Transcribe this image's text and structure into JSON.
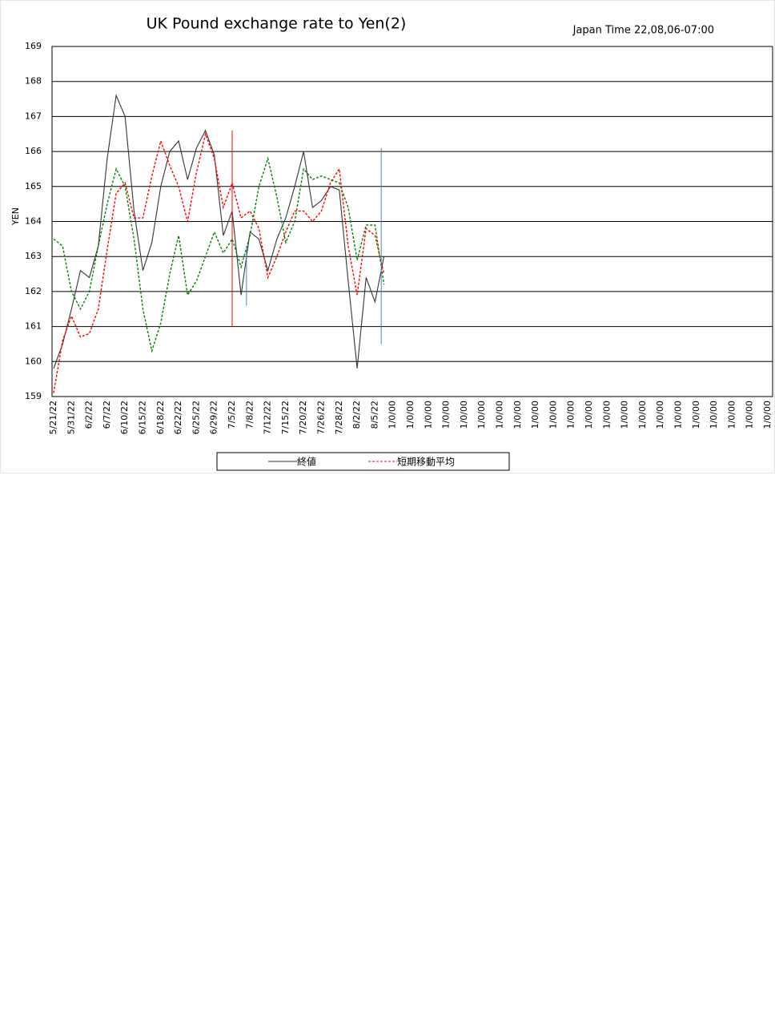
{
  "chart_data": {
    "type": "line",
    "title": "UK Pound exchange rate to Yen(2)",
    "annotation": "Japan Time 22,08,06-07:00",
    "y_label": "YEN",
    "categories": [
      "5/21/22",
      null,
      "5/31/22",
      null,
      "6/2/22",
      null,
      "6/7/22",
      null,
      "6/10/22",
      null,
      "6/15/22",
      null,
      "6/18/22",
      null,
      "6/22/22",
      null,
      "6/25/22",
      null,
      "6/29/22",
      null,
      "7/5/22",
      null,
      "7/8/22",
      null,
      "7/12/22",
      null,
      "7/15/22",
      null,
      "7/20/22",
      null,
      "7/26/22",
      null,
      "7/28/22",
      null,
      "8/2/22",
      null,
      "8/5/22",
      null,
      "1/0/00",
      null,
      "1/0/00",
      null,
      "1/0/00",
      null,
      "1/0/00",
      null,
      "1/0/00",
      null,
      "1/0/00",
      null,
      "1/0/00",
      null,
      "1/0/00",
      null,
      "1/0/00",
      null,
      "1/0/00",
      null,
      "1/0/00",
      null,
      "1/0/00",
      null,
      "1/0/00",
      null,
      "1/0/00",
      null,
      "1/0/00",
      null,
      "1/0/00",
      null,
      "1/0/00",
      null,
      "1/0/00",
      null,
      "1/0/00",
      null,
      "1/0/00",
      null,
      "1/0/00",
      null,
      "1/0/00"
    ],
    "series": [
      {
        "name": "終値",
        "color": "#333333",
        "dash": false,
        "values": [
          159.8,
          160.5,
          161.5,
          162.6,
          162.4,
          163.3,
          165.8,
          167.6,
          167,
          164.3,
          162.6,
          163.4,
          165,
          166,
          166.3,
          165.2,
          166.1,
          166.6,
          165.9,
          163.6,
          164.3,
          161.9,
          163.7,
          163.5,
          162.6,
          163.5,
          164.1,
          165,
          166,
          164.4,
          164.6,
          165,
          164.9,
          162.3,
          159.8,
          162.4,
          161.7,
          163.0,
          null,
          null,
          null,
          null,
          null,
          null,
          null,
          null,
          null,
          null,
          null,
          null,
          null,
          null,
          null,
          null,
          null,
          null,
          null,
          null,
          null,
          null,
          null,
          null,
          null,
          null,
          null,
          null,
          null,
          null,
          null,
          null,
          null,
          null,
          null,
          null,
          null,
          null,
          null,
          null,
          null,
          null,
          null
        ]
      },
      {
        "name": "短期移動平均",
        "color": "#ff0000",
        "dash": true,
        "values": [
          159.1,
          160.6,
          161.3,
          160.7,
          160.8,
          161.5,
          163.2,
          164.8,
          165.1,
          164.1,
          164.1,
          165.3,
          166.3,
          165.6,
          165,
          164,
          165.4,
          166.5,
          165.8,
          164.4,
          165.1,
          164.1,
          164.3,
          163.8,
          162.4,
          163,
          163.7,
          164.3,
          164.3,
          164,
          164.3,
          165.1,
          165.5,
          163.3,
          161.9,
          163.8,
          163.6,
          162.5,
          null,
          null,
          null,
          null,
          null,
          null,
          null,
          null,
          null,
          null,
          null,
          null,
          null,
          null,
          null,
          null,
          null,
          null,
          null,
          null,
          null,
          null,
          null,
          null,
          null,
          null,
          null,
          null,
          null,
          null,
          null,
          null,
          null,
          null,
          null,
          null,
          null,
          null,
          null,
          null,
          null,
          null,
          null
        ]
      },
      {
        "color": "#008000",
        "dash": true,
        "values": [
          163.5,
          163.3,
          162,
          161.5,
          162,
          163.3,
          164.5,
          165.5,
          165,
          163.5,
          161.5,
          160.3,
          161.1,
          162.5,
          163.6,
          161.9,
          162.3,
          163,
          163.7,
          163.1,
          163.5,
          162.7,
          163.6,
          165,
          165.8,
          164.7,
          163.4,
          164,
          165.5,
          165.2,
          165.3,
          165.2,
          165.1,
          164.4,
          162.9,
          163.9,
          163.9,
          162.2,
          null,
          null,
          null,
          null,
          null,
          null,
          null,
          null,
          null,
          null,
          null,
          null,
          null,
          null,
          null,
          null,
          null,
          null,
          null,
          null,
          null,
          null,
          null,
          null,
          null,
          null,
          null,
          null,
          null,
          null,
          null,
          null,
          null,
          null,
          null,
          null,
          null,
          null,
          null,
          null,
          null,
          null,
          null
        ]
      }
    ],
    "markers": [
      {
        "x": 20,
        "y": [
          161,
          166.6
        ],
        "color": "#ff0000"
      },
      {
        "x": 21.6,
        "y": [
          161.6,
          163.3
        ],
        "color": "#4f81bd"
      },
      {
        "x": 36.7,
        "y": [
          160.5,
          166.1
        ],
        "color": "#4f81bd"
      }
    ],
    "ylim": [
      159,
      169
    ],
    "yticks": [
      159,
      160,
      161,
      162,
      163,
      164,
      165,
      166,
      167,
      168,
      169
    ],
    "grid": true
  }
}
